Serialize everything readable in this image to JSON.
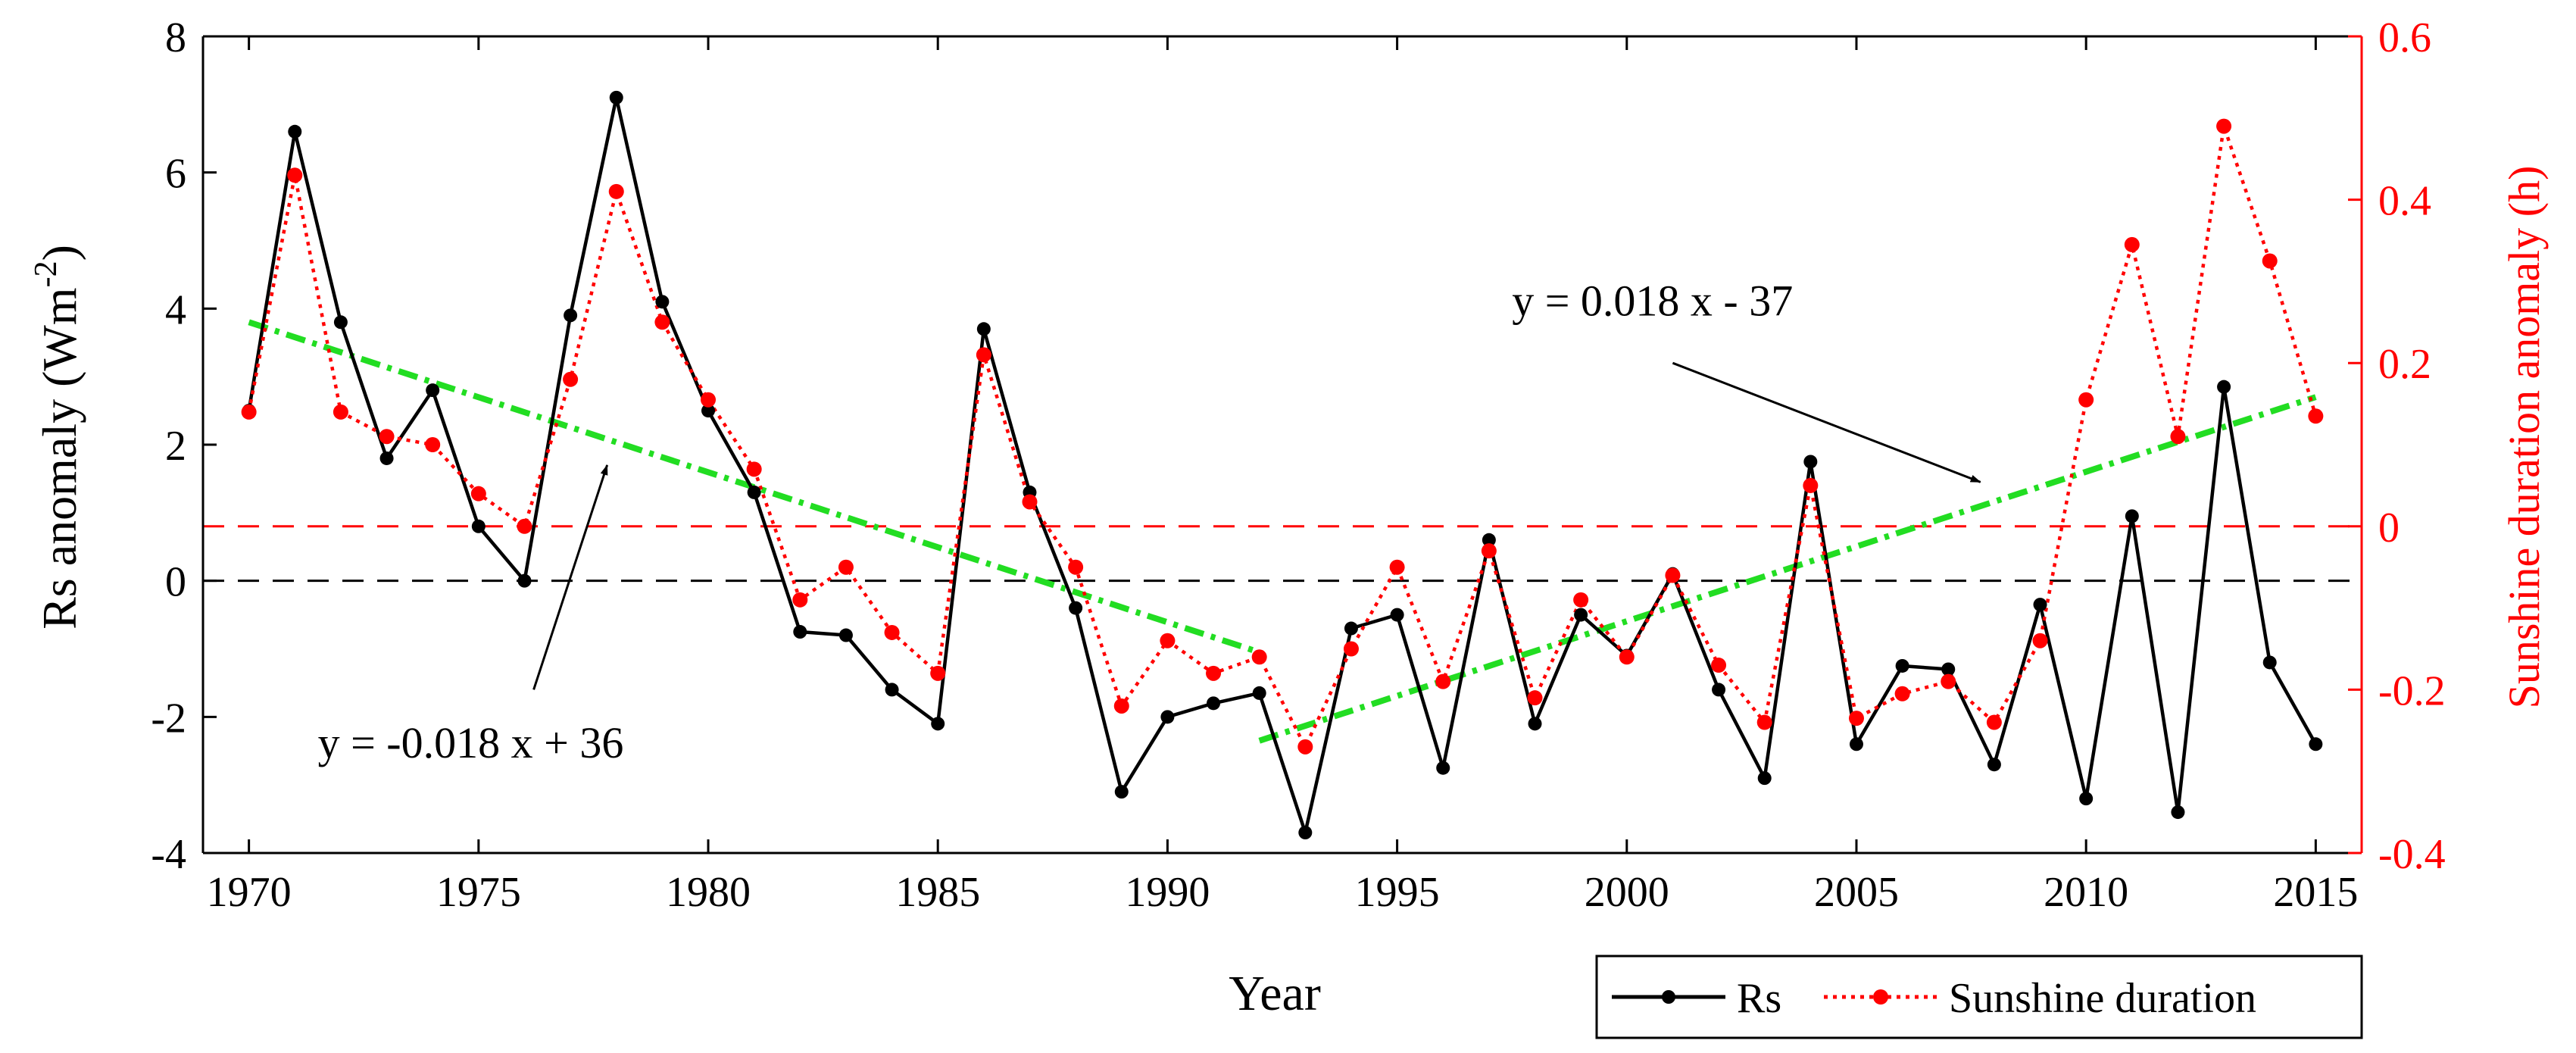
{
  "chart_data": {
    "type": "line",
    "xlabel": "Year",
    "ylabel_left": "Rs anomaly (Wm",
    "ylabel_left_sup": "-2",
    "ylabel_left_end": ")",
    "ylabel_right": "Sunshine duration anomaly (h)",
    "xlim": [
      1969,
      2016
    ],
    "ylim_left": [
      -4,
      8
    ],
    "ylim_right": [
      -0.4,
      0.6
    ],
    "x_ticks": [
      1970,
      1975,
      1980,
      1985,
      1990,
      1995,
      2000,
      2005,
      2010,
      2015
    ],
    "x_tick_labels": [
      "1970",
      "1975",
      "1980",
      "1985",
      "1990",
      "1995",
      "2000",
      "2005",
      "2010",
      "2015"
    ],
    "y_left_ticks": [
      -4,
      -2,
      0,
      2,
      4,
      6,
      8
    ],
    "y_left_tick_labels": [
      "-4",
      "-2",
      "0",
      "2",
      "4",
      "6",
      "8"
    ],
    "y_right_ticks": [
      -0.4,
      -0.2,
      0,
      0.2,
      0.4,
      0.6
    ],
    "y_right_tick_labels": [
      "-0.4",
      "-0.2",
      "0",
      "0.2",
      "0.4",
      "0.6"
    ],
    "series": [
      {
        "name": "Rs",
        "axis": "left",
        "color": "#000000",
        "x": [
          1970,
          1971,
          1972,
          1973,
          1974,
          1975,
          1976,
          1977,
          1978,
          1979,
          1980,
          1981,
          1982,
          1983,
          1984,
          1985,
          1986,
          1987,
          1988,
          1989,
          1990,
          1991,
          1992,
          1993,
          1994,
          1995,
          1996,
          1997,
          1998,
          1999,
          2000,
          2001,
          2002,
          2003,
          2004,
          2005,
          2006,
          2007,
          2008,
          2009,
          2010,
          2011,
          2012,
          2013,
          2014,
          2015
        ],
        "values": [
          2.5,
          6.6,
          3.8,
          1.8,
          2.8,
          0.8,
          0.0,
          3.9,
          7.1,
          4.1,
          2.5,
          1.3,
          -0.75,
          -0.8,
          -1.6,
          -2.1,
          3.7,
          1.3,
          -0.4,
          -3.1,
          -2.0,
          -1.8,
          -1.65,
          -3.7,
          -0.7,
          -0.5,
          -2.75,
          0.6,
          -2.1,
          -0.5,
          -1.1,
          0.1,
          -1.6,
          -2.9,
          1.75,
          -2.4,
          -1.25,
          -1.3,
          -2.7,
          -0.35,
          -3.2,
          0.95,
          -3.4,
          2.85,
          -1.2,
          -2.4
        ]
      },
      {
        "name": "Sunshine duration",
        "axis": "right",
        "color": "#ff0000",
        "x": [
          1970,
          1971,
          1972,
          1973,
          1974,
          1975,
          1976,
          1977,
          1978,
          1979,
          1980,
          1981,
          1982,
          1983,
          1984,
          1985,
          1986,
          1987,
          1988,
          1989,
          1990,
          1991,
          1992,
          1993,
          1994,
          1995,
          1996,
          1997,
          1998,
          1999,
          2000,
          2001,
          2002,
          2003,
          2004,
          2005,
          2006,
          2007,
          2008,
          2009,
          2010,
          2011,
          2012,
          2013,
          2014,
          2015
        ],
        "values": [
          0.14,
          0.43,
          0.14,
          0.11,
          0.1,
          0.04,
          0.0,
          0.18,
          0.41,
          0.25,
          0.155,
          0.07,
          -0.09,
          -0.05,
          -0.13,
          -0.18,
          0.21,
          0.03,
          -0.05,
          -0.22,
          -0.14,
          -0.18,
          -0.16,
          -0.27,
          -0.15,
          -0.05,
          -0.19,
          -0.03,
          -0.21,
          -0.09,
          -0.16,
          -0.06,
          -0.17,
          -0.24,
          0.05,
          -0.235,
          -0.205,
          -0.19,
          -0.24,
          -0.14,
          0.155,
          0.345,
          0.11,
          0.49,
          0.325,
          0.135
        ]
      }
    ],
    "trendlines": [
      {
        "name": "trend-1970-1992",
        "axis": "left",
        "color": "#22dd22",
        "x": [
          1970,
          1992
        ],
        "y": [
          3.8,
          -1.05
        ],
        "equation": "y = -0.018 x + 36"
      },
      {
        "name": "trend-1992-2015",
        "axis": "left",
        "color": "#22dd22",
        "x": [
          1992,
          2015
        ],
        "y": [
          -2.35,
          2.7
        ],
        "equation": "y = 0.018 x - 37"
      }
    ],
    "reference_lines": [
      {
        "name": "zero-line-rs",
        "axis": "left",
        "value": 0,
        "color": "#000000"
      },
      {
        "name": "zero-line-sunshine",
        "axis": "right",
        "value": 0,
        "color": "#ff0000"
      }
    ],
    "annotations": [
      {
        "text": "y = -0.018 x + 36",
        "label_at": [
          1971.5,
          -2.6
        ],
        "arrow_from": [
          1976.2,
          -1.6
        ],
        "arrow_to": [
          1977.8,
          1.7
        ]
      },
      {
        "text": "y = 0.018 x - 37",
        "label_at": [
          1997.5,
          3.9
        ],
        "arrow_from": [
          2001.0,
          3.2
        ],
        "arrow_to": [
          2007.7,
          1.45
        ]
      }
    ],
    "legend": {
      "position": "bottom-right",
      "entries": [
        "Rs",
        "Sunshine duration"
      ]
    }
  }
}
